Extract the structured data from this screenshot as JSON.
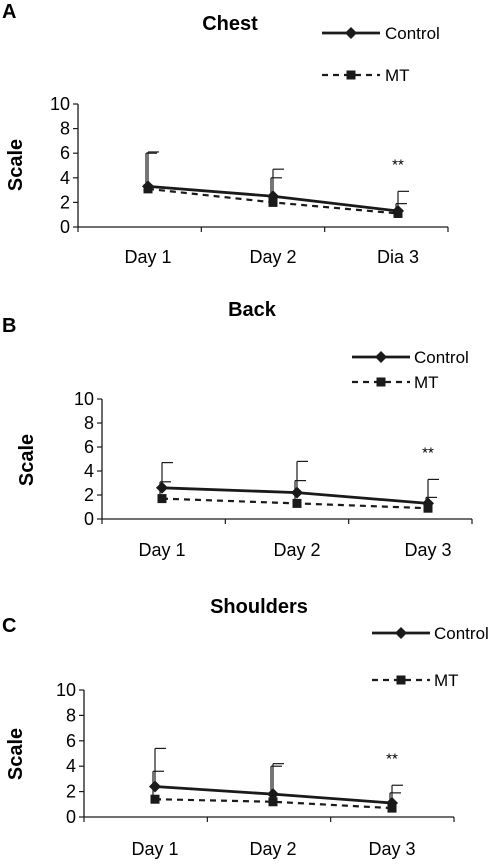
{
  "chart_data": [
    {
      "type": "line",
      "panel_label": "A",
      "title": "Chest",
      "ylabel": "Scale",
      "xlabel": "",
      "categories": [
        "Day 1",
        "Day 2",
        "Dia 3"
      ],
      "ylim": [
        0,
        10
      ],
      "yticks": [
        0,
        2,
        4,
        6,
        8,
        10
      ],
      "grid": false,
      "legend_position": "top-right",
      "significance": {
        "category_index": 2,
        "label": "**"
      },
      "series": [
        {
          "name": "Control",
          "style": "solid",
          "marker": "diamond",
          "values": [
            3.3,
            2.5,
            1.3
          ],
          "error_upper": [
            6.1,
            4.7,
            2.9
          ]
        },
        {
          "name": "MT",
          "style": "dashed",
          "marker": "square",
          "values": [
            3.1,
            2.0,
            1.1
          ],
          "error_upper": [
            6.0,
            4.0,
            1.9
          ]
        }
      ]
    },
    {
      "type": "line",
      "panel_label": "B",
      "title": "Back",
      "ylabel": "Scale",
      "xlabel": "",
      "categories": [
        "Day 1",
        "Day 2",
        "Day 3"
      ],
      "ylim": [
        0,
        10
      ],
      "yticks": [
        0,
        2,
        4,
        6,
        8,
        10
      ],
      "grid": false,
      "legend_position": "top-right",
      "significance": {
        "category_index": 2,
        "label": "**"
      },
      "series": [
        {
          "name": "Control",
          "style": "solid",
          "marker": "diamond",
          "values": [
            2.6,
            2.2,
            1.3
          ],
          "error_upper": [
            4.7,
            4.8,
            3.3
          ]
        },
        {
          "name": "MT",
          "style": "dashed",
          "marker": "square",
          "values": [
            1.7,
            1.3,
            0.9
          ],
          "error_upper": [
            3.1,
            3.2,
            1.8
          ]
        }
      ]
    },
    {
      "type": "line",
      "panel_label": "C",
      "title": "Shoulders",
      "ylabel": "Scale",
      "xlabel": "",
      "categories": [
        "Day 1",
        "Day 2",
        "Day 3"
      ],
      "ylim": [
        0,
        10
      ],
      "yticks": [
        0,
        2,
        4,
        6,
        8,
        10
      ],
      "grid": false,
      "legend_position": "top-right",
      "significance": {
        "category_index": 2,
        "label": "**"
      },
      "series": [
        {
          "name": "Control",
          "style": "solid",
          "marker": "diamond",
          "values": [
            2.4,
            1.8,
            1.1
          ],
          "error_upper": [
            5.4,
            4.2,
            2.5
          ]
        },
        {
          "name": "MT",
          "style": "dashed",
          "marker": "square",
          "values": [
            1.4,
            1.2,
            0.7
          ],
          "error_upper": [
            3.6,
            4.0,
            1.9
          ]
        }
      ]
    }
  ],
  "colors": {
    "line": "#1a1a1a",
    "text": "#000000",
    "background": "#ffffff"
  }
}
